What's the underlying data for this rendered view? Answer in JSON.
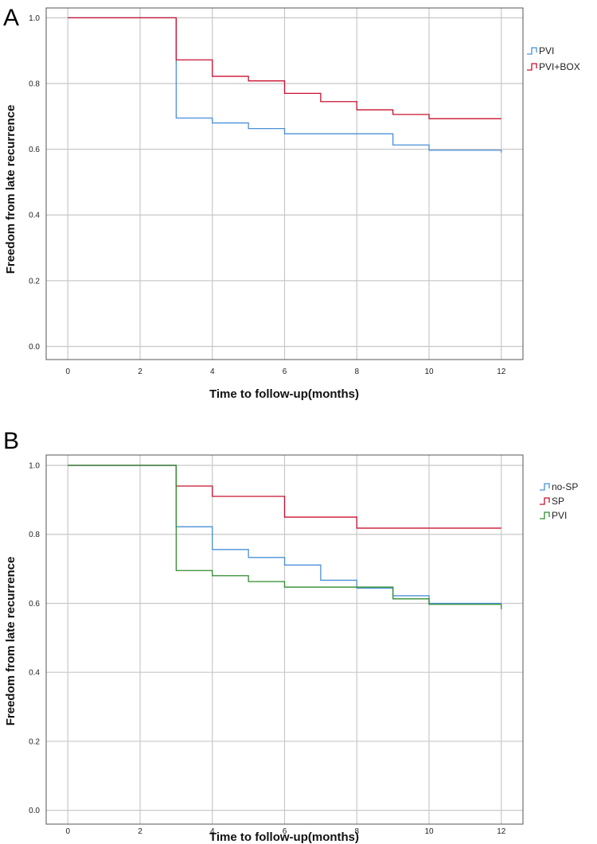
{
  "chart_data": [
    {
      "type": "line",
      "step": true,
      "panel_label": "A",
      "title": "",
      "xlabel": "Time to follow-up(months)",
      "ylabel": "Freedom from late recurrence",
      "xlim": [
        -0.6,
        12.6
      ],
      "ylim": [
        -0.04,
        1.03
      ],
      "xticks": [
        0,
        2,
        4,
        6,
        8,
        10,
        12
      ],
      "yticks": [
        0.0,
        0.2,
        0.4,
        0.6,
        0.8,
        1.0
      ],
      "xtick_labels": [
        "0",
        "2",
        "4",
        "6",
        "8",
        "10",
        "12"
      ],
      "ytick_labels": [
        "0.0",
        "0.2",
        "0.4",
        "0.6",
        "0.8",
        "1.0"
      ],
      "legend_position": "top-right",
      "series": [
        {
          "name": "PVI",
          "color": "#4a90d9",
          "points": [
            [
              0,
              1.0
            ],
            [
              3,
              0.695
            ],
            [
              4,
              0.68
            ],
            [
              5,
              0.663
            ],
            [
              6,
              0.647
            ],
            [
              9,
              0.613
            ],
            [
              10,
              0.597
            ],
            [
              12,
              0.59
            ]
          ]
        },
        {
          "name": "PVI+BOX",
          "color": "#c8102e",
          "points": [
            [
              0,
              1.0
            ],
            [
              3,
              0.872
            ],
            [
              4,
              0.822
            ],
            [
              5,
              0.808
            ],
            [
              6,
              0.77
            ],
            [
              7,
              0.745
            ],
            [
              8,
              0.72
            ],
            [
              9,
              0.706
            ],
            [
              10,
              0.693
            ],
            [
              12,
              0.693
            ]
          ]
        }
      ]
    },
    {
      "type": "line",
      "step": true,
      "panel_label": "B",
      "title": "",
      "xlabel": "Time to follow-up(months)",
      "ylabel": "Freedom from late recurrence",
      "xlim": [
        -0.6,
        12.6
      ],
      "ylim": [
        -0.04,
        1.03
      ],
      "xticks": [
        0,
        2,
        4,
        6,
        8,
        10,
        12
      ],
      "yticks": [
        0.0,
        0.2,
        0.4,
        0.6,
        0.8,
        1.0
      ],
      "xtick_labels": [
        "0",
        "2",
        "4",
        "6",
        "8",
        "10",
        "12"
      ],
      "ytick_labels": [
        "0.0",
        "0.2",
        "0.4",
        "0.6",
        "0.8",
        "1.0"
      ],
      "legend_position": "top-right",
      "series": [
        {
          "name": "no-SP",
          "color": "#4a90d9",
          "points": [
            [
              0,
              1.0
            ],
            [
              3,
              0.822
            ],
            [
              4,
              0.756
            ],
            [
              5,
              0.733
            ],
            [
              6,
              0.711
            ],
            [
              7,
              0.667
            ],
            [
              8,
              0.644
            ],
            [
              9,
              0.622
            ],
            [
              10,
              0.6
            ],
            [
              12,
              0.6
            ]
          ]
        },
        {
          "name": "SP",
          "color": "#c8102e",
          "points": [
            [
              0,
              1.0
            ],
            [
              3,
              0.94
            ],
            [
              4,
              0.91
            ],
            [
              6,
              0.85
            ],
            [
              8,
              0.818
            ],
            [
              12,
              0.818
            ]
          ]
        },
        {
          "name": "PVI",
          "color": "#2e8b2e",
          "points": [
            [
              0,
              1.0
            ],
            [
              3,
              0.695
            ],
            [
              4,
              0.68
            ],
            [
              5,
              0.663
            ],
            [
              6,
              0.647
            ],
            [
              9,
              0.613
            ],
            [
              10,
              0.597
            ],
            [
              12,
              0.583
            ]
          ]
        }
      ]
    }
  ]
}
